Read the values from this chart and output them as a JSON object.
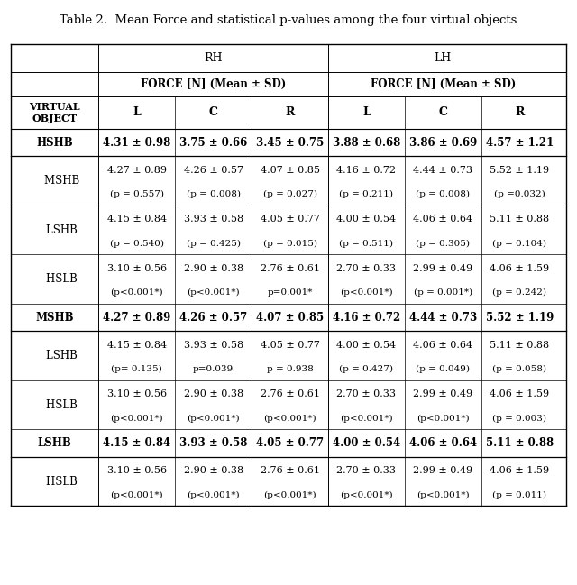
{
  "title": "Table 2.  Mean Force and statistical p-values among the four virtual objects",
  "col_headers": [
    "RH",
    "LH"
  ],
  "sub_headers": [
    "FORCE [N] (Mean ± SD)",
    "FORCE [N] (Mean ± SD)"
  ],
  "col_labels": [
    "L",
    "C",
    "R",
    "L",
    "C",
    "R"
  ],
  "row_label_header": "VIRTUAL\nOBJECT",
  "rows": [
    {
      "label": "HSHB",
      "bold": true,
      "indent": false,
      "data": [
        "4.31 ± 0.98",
        "3.75 ± 0.66",
        "3.45 ± 0.75",
        "3.88 ± 0.68",
        "3.86 ± 0.69",
        "4.57 ± 1.21"
      ],
      "pvalues": null
    },
    {
      "label": "MSHB",
      "bold": false,
      "indent": true,
      "data": [
        "4.27 ± 0.89",
        "4.26 ± 0.57",
        "4.07 ± 0.85",
        "4.16 ± 0.72",
        "4.44 ± 0.73",
        "5.52 ± 1.19"
      ],
      "pvalues": [
        "(p = 0.557)",
        "(p = 0.008)",
        "(p = 0.027)",
        "(p = 0.211)",
        "(p = 0.008)",
        "(p =0.032)"
      ]
    },
    {
      "label": "LSHB",
      "bold": false,
      "indent": true,
      "data": [
        "4.15 ± 0.84",
        "3.93 ± 0.58",
        "4.05 ± 0.77",
        "4.00 ± 0.54",
        "4.06 ± 0.64",
        "5.11 ± 0.88"
      ],
      "pvalues": [
        "(p = 0.540)",
        "(p = 0.425)",
        "(p = 0.015)",
        "(p = 0.511)",
        "(p = 0.305)",
        "(p = 0.104)"
      ]
    },
    {
      "label": "HSLB",
      "bold": false,
      "indent": true,
      "data": [
        "3.10 ± 0.56",
        "2.90 ± 0.38",
        "2.76 ± 0.61",
        "2.70 ± 0.33",
        "2.99 ± 0.49",
        "4.06 ± 1.59"
      ],
      "pvalues": [
        "(p<0.001*)",
        "(p<0.001*)",
        "p=0.001*",
        "(p<0.001*)",
        "(p = 0.001*)",
        "(p = 0.242)"
      ]
    },
    {
      "label": "MSHB",
      "bold": true,
      "indent": false,
      "data": [
        "4.27 ± 0.89",
        "4.26 ± 0.57",
        "4.07 ± 0.85",
        "4.16 ± 0.72",
        "4.44 ± 0.73",
        "5.52 ± 1.19"
      ],
      "pvalues": null
    },
    {
      "label": "LSHB",
      "bold": false,
      "indent": true,
      "data": [
        "4.15 ± 0.84",
        "3.93 ± 0.58",
        "4.05 ± 0.77",
        "4.00 ± 0.54",
        "4.06 ± 0.64",
        "5.11 ± 0.88"
      ],
      "pvalues": [
        "(p= 0.135)",
        "p=0.039",
        "p = 0.938",
        "(p = 0.427)",
        "(p = 0.049)",
        "(p = 0.058)"
      ]
    },
    {
      "label": "HSLB",
      "bold": false,
      "indent": true,
      "data": [
        "3.10 ± 0.56",
        "2.90 ± 0.38",
        "2.76 ± 0.61",
        "2.70 ± 0.33",
        "2.99 ± 0.49",
        "4.06 ± 1.59"
      ],
      "pvalues": [
        "(p<0.001*)",
        "(p<0.001*)",
        "(p<0.001*)",
        "(p<0.001*)",
        "(p<0.001*)",
        "(p = 0.003)"
      ]
    },
    {
      "label": "LSHB",
      "bold": true,
      "indent": false,
      "data": [
        "4.15 ± 0.84",
        "3.93 ± 0.58",
        "4.05 ± 0.77",
        "4.00 ± 0.54",
        "4.06 ± 0.64",
        "5.11 ± 0.88"
      ],
      "pvalues": null
    },
    {
      "label": "HSLB",
      "bold": false,
      "indent": true,
      "data": [
        "3.10 ± 0.56",
        "2.90 ± 0.38",
        "2.76 ± 0.61",
        "2.70 ± 0.33",
        "2.99 ± 0.49",
        "4.06 ± 1.59"
      ],
      "pvalues": [
        "(p<0.001*)",
        "(p<0.001*)",
        "(p<0.001*)",
        "(p<0.001*)",
        "(p<0.001*)",
        "(p = 0.011)"
      ]
    }
  ],
  "bg_color": "#ffffff",
  "border_color": "#000000",
  "font_size": 8.5,
  "title_font_size": 9.5
}
